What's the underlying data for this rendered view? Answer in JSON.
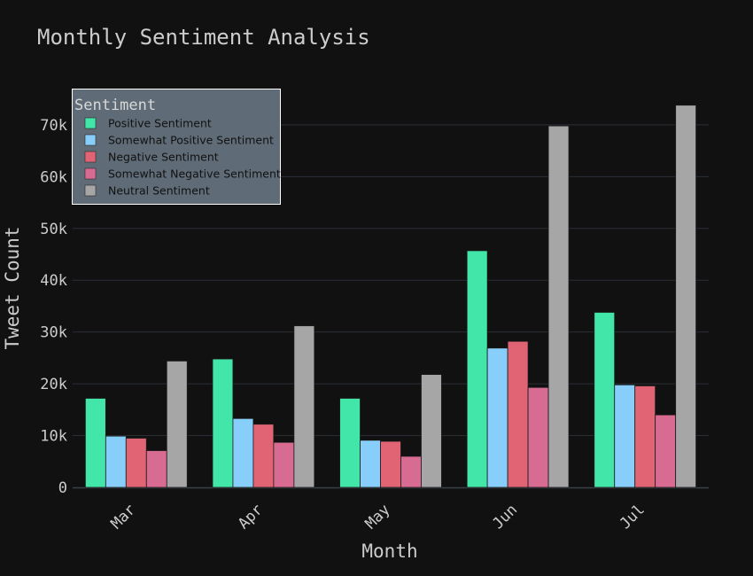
{
  "colors": {
    "background": "#111111",
    "grid": "#2a2f36",
    "text": "#cccccc",
    "legend_bg": "#5f6b76",
    "legend_border": "#ffffff"
  },
  "chart_data": {
    "type": "bar",
    "title": "Monthly Sentiment Analysis",
    "xlabel": "Month",
    "ylabel": "Tweet Count",
    "categories": [
      "Mar",
      "Apr",
      "May",
      "Jun",
      "Jul"
    ],
    "ylim": [
      0,
      77000
    ],
    "yticks": [
      0,
      10000,
      20000,
      30000,
      40000,
      50000,
      60000,
      70000
    ],
    "ytick_labels": [
      "0",
      "10k",
      "20k",
      "30k",
      "40k",
      "50k",
      "60k",
      "70k"
    ],
    "grid": true,
    "legend": {
      "title": "Sentiment",
      "placement": "top-left"
    },
    "series": [
      {
        "name": "Positive Sentiment",
        "color": "#41e6a8",
        "values": [
          17200,
          24800,
          17200,
          45700,
          33800
        ]
      },
      {
        "name": "Somewhat Positive Sentiment",
        "color": "#87cefa",
        "values": [
          9900,
          13300,
          9100,
          26900,
          19800
        ]
      },
      {
        "name": "Negative Sentiment",
        "color": "#e16475",
        "values": [
          9500,
          12200,
          8900,
          28200,
          19600
        ]
      },
      {
        "name": "Somewhat Negative Sentiment",
        "color": "#d86b92",
        "values": [
          7100,
          8700,
          6000,
          19300,
          14000
        ]
      },
      {
        "name": "Neutral Sentiment",
        "color": "#a6a6a6",
        "values": [
          24400,
          31200,
          21800,
          69800,
          73800
        ]
      }
    ]
  }
}
